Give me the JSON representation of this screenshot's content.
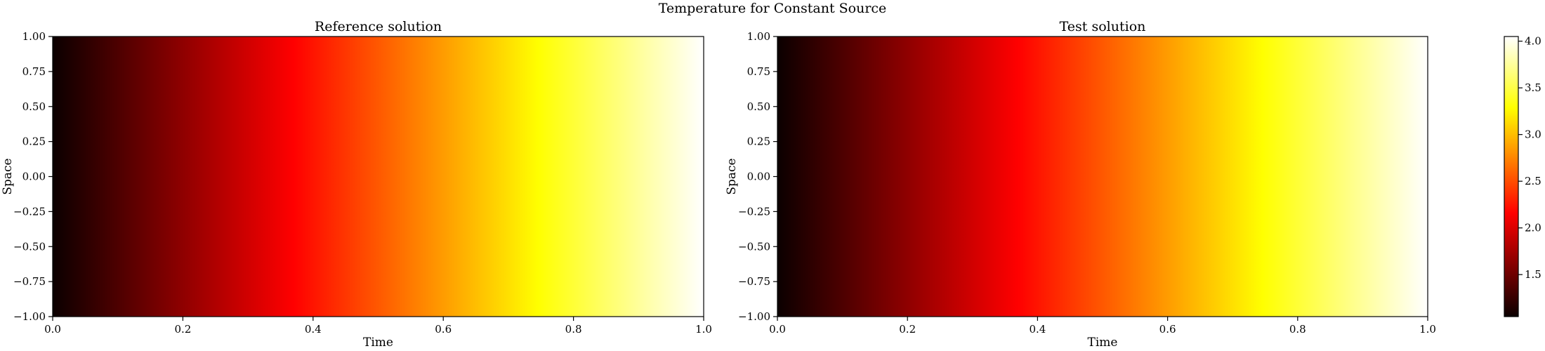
{
  "figure_title": "Temperature for Constant Source",
  "colormap": "hot",
  "colors": {
    "hot_stops": [
      "#0b0000",
      "#ff0000",
      "#ffff00",
      "#ffffff"
    ]
  },
  "chart_data": [
    {
      "type": "heatmap",
      "title": "Reference solution",
      "xlabel": "Time",
      "ylabel": "Space",
      "xlim": [
        0.0,
        1.0
      ],
      "ylim": [
        -1.0,
        1.0
      ],
      "xticks": [
        "0.0",
        "0.2",
        "0.4",
        "0.6",
        "0.8",
        "1.0"
      ],
      "yticks": [
        "-1.00",
        "-0.75",
        "-0.50",
        "-0.25",
        "0.00",
        "0.25",
        "0.50",
        "0.75",
        "1.00"
      ],
      "value_range": [
        1.05,
        4.05
      ],
      "profile": "value increases with time, constant across space",
      "values_by_time": {
        "time": [
          0.0,
          0.1,
          0.2,
          0.3,
          0.4,
          0.5,
          0.6,
          0.7,
          0.8,
          0.9,
          1.0
        ],
        "value": [
          1.05,
          1.35,
          1.65,
          1.95,
          2.25,
          2.55,
          2.85,
          3.15,
          3.45,
          3.75,
          4.05
        ]
      }
    },
    {
      "type": "heatmap",
      "title": "Test solution",
      "xlabel": "Time",
      "ylabel": "Space",
      "xlim": [
        0.0,
        1.0
      ],
      "ylim": [
        -1.0,
        1.0
      ],
      "xticks": [
        "0.0",
        "0.2",
        "0.4",
        "0.6",
        "0.8",
        "1.0"
      ],
      "yticks": [
        "-1.00",
        "-0.75",
        "-0.50",
        "-0.25",
        "0.00",
        "0.25",
        "0.50",
        "0.75",
        "1.00"
      ],
      "value_range": [
        1.05,
        4.05
      ],
      "profile": "value increases with time, constant across space",
      "values_by_time": {
        "time": [
          0.0,
          0.1,
          0.2,
          0.3,
          0.4,
          0.5,
          0.6,
          0.7,
          0.8,
          0.9,
          1.0
        ],
        "value": [
          1.05,
          1.35,
          1.65,
          1.95,
          2.25,
          2.55,
          2.85,
          3.15,
          3.45,
          3.75,
          4.05
        ]
      }
    }
  ],
  "colorbar": {
    "ticks": [
      "1.5",
      "2.0",
      "2.5",
      "3.0",
      "3.5",
      "4.0"
    ],
    "tick_values": [
      1.5,
      2.0,
      2.5,
      3.0,
      3.5,
      4.0
    ],
    "range": [
      1.05,
      4.05
    ]
  }
}
